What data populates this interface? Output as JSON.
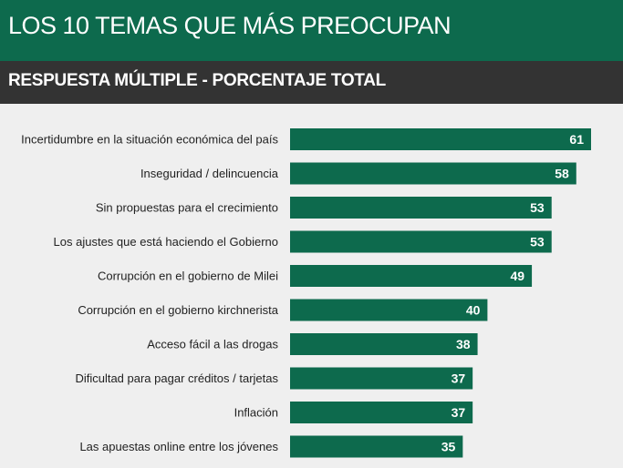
{
  "header": {
    "title": "LOS 10 TEMAS QUE MÁS PREOCUPAN",
    "subtitle": "RESPUESTA MÚLTIPLE - PORCENTAJE TOTAL"
  },
  "colors": {
    "bar": "#0d6a4d",
    "header_bg": "#0d6a4d",
    "subheader_bg": "#333333",
    "background": "#efefef"
  },
  "chart_data": {
    "type": "bar",
    "orientation": "horizontal",
    "title": "LOS 10 TEMAS QUE MÁS PREOCUPAN",
    "subtitle": "RESPUESTA MÚLTIPLE - PORCENTAJE TOTAL",
    "xlabel": "",
    "ylabel": "",
    "xlim": [
      0,
      65
    ],
    "grid": false,
    "categories": [
      "Incertidumbre en la situación económica del país",
      "Inseguridad / delincuencia",
      "Sin propuestas para el crecimiento",
      "Los ajustes que está haciendo el Gobierno",
      "Corrupción en el gobierno de Milei",
      "Corrupción en el gobierno kirchnerista",
      "Acceso fácil a las drogas",
      "Dificultad para pagar créditos / tarjetas",
      "Inflación",
      "Las apuestas online entre los jóvenes"
    ],
    "values": [
      61,
      58,
      53,
      53,
      49,
      40,
      38,
      37,
      37,
      35
    ]
  }
}
